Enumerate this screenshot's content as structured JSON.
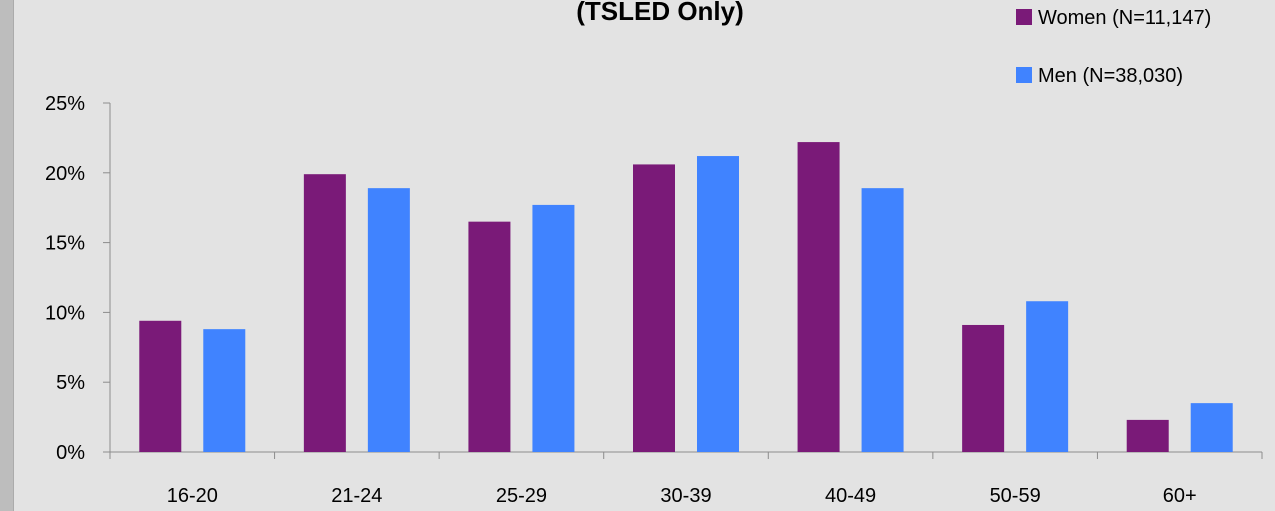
{
  "chart_data": {
    "type": "bar",
    "title": "(TSLED Only)",
    "categories": [
      "16-20",
      "21-24",
      "25-29",
      "30-39",
      "40-49",
      "50-59",
      "60+"
    ],
    "series": [
      {
        "name": "Women (N=11,147)",
        "color": "#7a1a78",
        "values": [
          9.4,
          19.9,
          16.5,
          20.6,
          22.2,
          9.1,
          2.3
        ]
      },
      {
        "name": "Men (N=38,030)",
        "color": "#4083ff",
        "values": [
          8.8,
          18.9,
          17.7,
          21.2,
          18.9,
          10.8,
          3.5
        ]
      }
    ],
    "ylim": [
      0,
      25
    ],
    "yticks": [
      "0%",
      "5%",
      "10%",
      "15%",
      "20%",
      "25%"
    ],
    "xlabel": "",
    "ylabel": "",
    "grid": false,
    "legend_position": "top-right"
  }
}
